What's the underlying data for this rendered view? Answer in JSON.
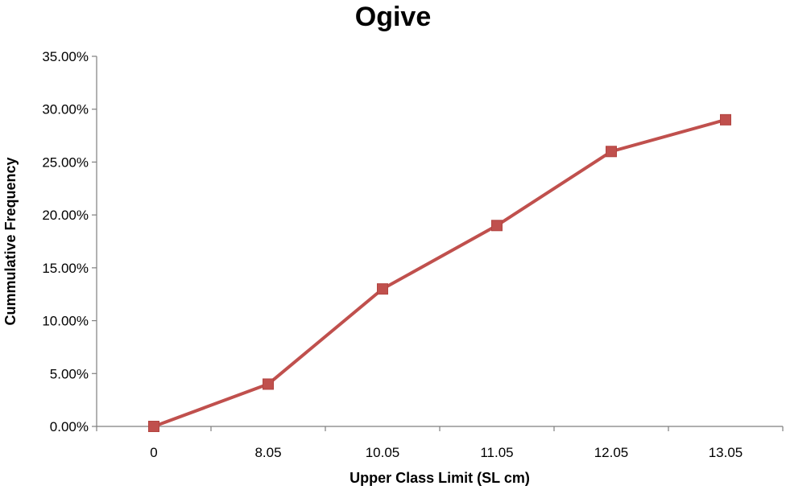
{
  "chart_data": {
    "type": "line",
    "title": "Ogive",
    "xlabel": "Upper Class Limit (SL cm)",
    "ylabel": "Cummulative Frequency",
    "categories": [
      "0",
      "8.05",
      "10.05",
      "11.05",
      "12.05",
      "13.05"
    ],
    "series": [
      {
        "values": [
          0.0,
          4.0,
          13.0,
          19.0,
          26.0,
          29.0
        ]
      }
    ],
    "y_ticks": [
      "0.00%",
      "5.00%",
      "10.00%",
      "15.00%",
      "20.00%",
      "25.00%",
      "30.00%",
      "35.00%"
    ],
    "ylim": [
      0,
      35
    ],
    "y_unit": "percent",
    "grid": false,
    "legend": "none",
    "marker": "square",
    "colors": {
      "series": "#C0504D",
      "axis": "#7F7F7F"
    }
  }
}
